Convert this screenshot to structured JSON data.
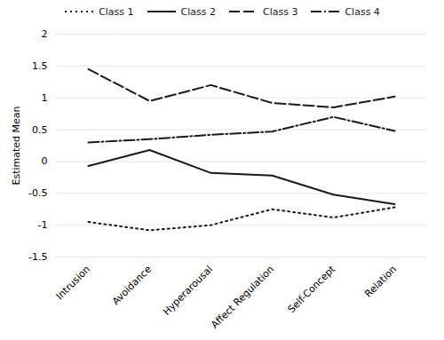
{
  "chart_data": {
    "type": "line",
    "categories": [
      "Intrusion",
      "Avoidance",
      "Hyperarousal",
      "Affect Regulation",
      "Self-Concept",
      "Relation"
    ],
    "series": [
      {
        "name": "Class 1",
        "color": "#1a1a1a",
        "line_style": "dotted",
        "values": [
          -0.95,
          -1.08,
          -1.0,
          -0.75,
          -0.88,
          -0.72
        ]
      },
      {
        "name": "Class 2",
        "color": "#1a1a1a",
        "line_style": "solid",
        "values": [
          -0.07,
          0.18,
          -0.18,
          -0.22,
          -0.52,
          -0.67
        ]
      },
      {
        "name": "Class 3",
        "color": "#1a1a1a",
        "line_style": "dashed",
        "values": [
          1.45,
          0.95,
          1.2,
          0.92,
          0.85,
          1.02
        ]
      },
      {
        "name": "Class 4",
        "color": "#1a1a1a",
        "line_style": "dashdot",
        "values": [
          0.3,
          0.35,
          0.42,
          0.47,
          0.7,
          0.48
        ]
      }
    ],
    "ylabel": "Estimated Mean",
    "ylim": [
      -1.5,
      2.0
    ],
    "yticks": [
      -1.5,
      -1,
      -0.5,
      0,
      0.5,
      1,
      1.5,
      2
    ],
    "grid": true,
    "legend": "top"
  }
}
